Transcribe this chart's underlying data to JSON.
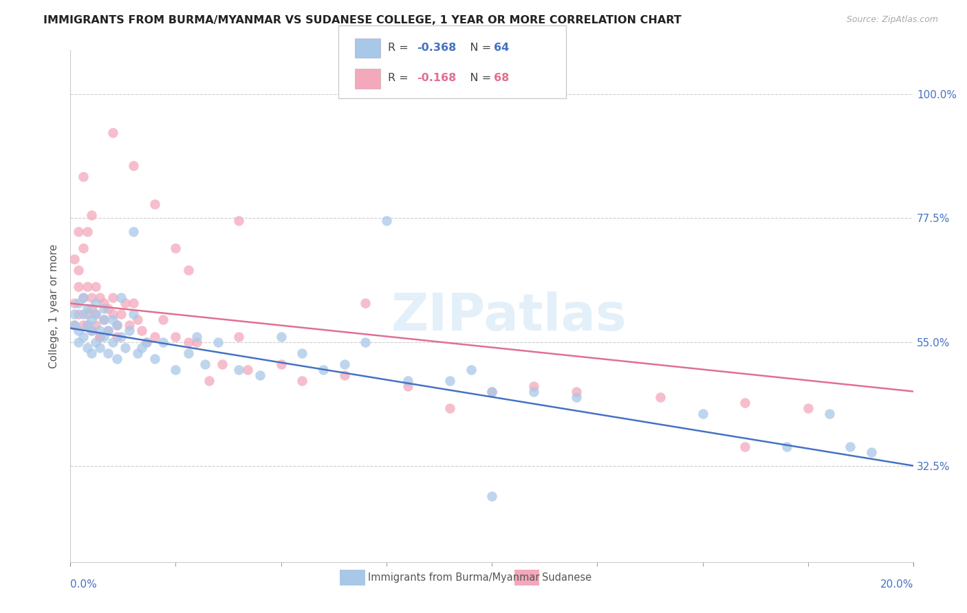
{
  "title": "IMMIGRANTS FROM BURMA/MYANMAR VS SUDANESE COLLEGE, 1 YEAR OR MORE CORRELATION CHART",
  "source": "Source: ZipAtlas.com",
  "ylabel": "College, 1 year or more",
  "yticks": [
    0.325,
    0.55,
    0.775,
    1.0
  ],
  "ytick_labels": [
    "32.5%",
    "55.0%",
    "77.5%",
    "100.0%"
  ],
  "xlim": [
    0.0,
    0.2
  ],
  "ylim": [
    0.15,
    1.08
  ],
  "legend_r_blue": "-0.368",
  "legend_n_blue": "64",
  "legend_r_pink": "-0.168",
  "legend_n_pink": "68",
  "blue_color": "#a8c8e8",
  "pink_color": "#f4a8bc",
  "blue_line_color": "#4472c4",
  "pink_line_color": "#e07090",
  "watermark": "ZIPatlas",
  "blue_scatter_x": [
    0.001,
    0.001,
    0.002,
    0.002,
    0.002,
    0.003,
    0.003,
    0.003,
    0.004,
    0.004,
    0.004,
    0.005,
    0.005,
    0.005,
    0.006,
    0.006,
    0.006,
    0.007,
    0.007,
    0.008,
    0.008,
    0.008,
    0.009,
    0.009,
    0.01,
    0.01,
    0.011,
    0.011,
    0.012,
    0.012,
    0.013,
    0.014,
    0.015,
    0.015,
    0.016,
    0.017,
    0.018,
    0.02,
    0.022,
    0.025,
    0.028,
    0.03,
    0.032,
    0.035,
    0.04,
    0.045,
    0.05,
    0.055,
    0.06,
    0.065,
    0.07,
    0.075,
    0.08,
    0.09,
    0.095,
    0.1,
    0.11,
    0.12,
    0.15,
    0.17,
    0.18,
    0.185,
    0.19,
    0.1
  ],
  "blue_scatter_y": [
    0.6,
    0.58,
    0.62,
    0.55,
    0.57,
    0.6,
    0.56,
    0.63,
    0.58,
    0.54,
    0.61,
    0.57,
    0.59,
    0.53,
    0.6,
    0.55,
    0.62,
    0.57,
    0.54,
    0.59,
    0.56,
    0.61,
    0.57,
    0.53,
    0.59,
    0.55,
    0.58,
    0.52,
    0.56,
    0.63,
    0.54,
    0.57,
    0.6,
    0.75,
    0.53,
    0.54,
    0.55,
    0.52,
    0.55,
    0.5,
    0.53,
    0.56,
    0.51,
    0.55,
    0.5,
    0.49,
    0.56,
    0.53,
    0.5,
    0.51,
    0.55,
    0.77,
    0.48,
    0.48,
    0.5,
    0.46,
    0.46,
    0.45,
    0.42,
    0.36,
    0.42,
    0.36,
    0.35,
    0.27
  ],
  "pink_scatter_x": [
    0.001,
    0.001,
    0.001,
    0.002,
    0.002,
    0.002,
    0.003,
    0.003,
    0.003,
    0.004,
    0.004,
    0.004,
    0.005,
    0.005,
    0.005,
    0.006,
    0.006,
    0.006,
    0.007,
    0.007,
    0.008,
    0.008,
    0.009,
    0.009,
    0.01,
    0.01,
    0.011,
    0.011,
    0.012,
    0.013,
    0.014,
    0.015,
    0.016,
    0.017,
    0.018,
    0.02,
    0.022,
    0.025,
    0.028,
    0.03,
    0.033,
    0.036,
    0.04,
    0.042,
    0.05,
    0.055,
    0.065,
    0.07,
    0.08,
    0.09,
    0.1,
    0.11,
    0.12,
    0.14,
    0.16,
    0.175,
    0.04,
    0.028,
    0.01,
    0.015,
    0.02,
    0.025,
    0.003,
    0.002,
    0.004,
    0.005,
    0.007,
    0.16
  ],
  "pink_scatter_y": [
    0.62,
    0.7,
    0.58,
    0.65,
    0.6,
    0.68,
    0.63,
    0.58,
    0.72,
    0.65,
    0.6,
    0.58,
    0.63,
    0.57,
    0.61,
    0.6,
    0.58,
    0.65,
    0.63,
    0.56,
    0.59,
    0.62,
    0.57,
    0.61,
    0.6,
    0.63,
    0.58,
    0.56,
    0.6,
    0.62,
    0.58,
    0.62,
    0.59,
    0.57,
    0.55,
    0.56,
    0.59,
    0.56,
    0.55,
    0.55,
    0.48,
    0.51,
    0.56,
    0.5,
    0.51,
    0.48,
    0.49,
    0.62,
    0.47,
    0.43,
    0.46,
    0.47,
    0.46,
    0.45,
    0.44,
    0.43,
    0.77,
    0.68,
    0.93,
    0.87,
    0.8,
    0.72,
    0.85,
    0.75,
    0.75,
    0.78,
    0.56,
    0.36
  ],
  "blue_line_x0": 0.0,
  "blue_line_y0": 0.575,
  "blue_line_x1": 0.2,
  "blue_line_y1": 0.325,
  "pink_line_x0": 0.0,
  "pink_line_y0": 0.62,
  "pink_line_x1": 0.2,
  "pink_line_y1": 0.46
}
